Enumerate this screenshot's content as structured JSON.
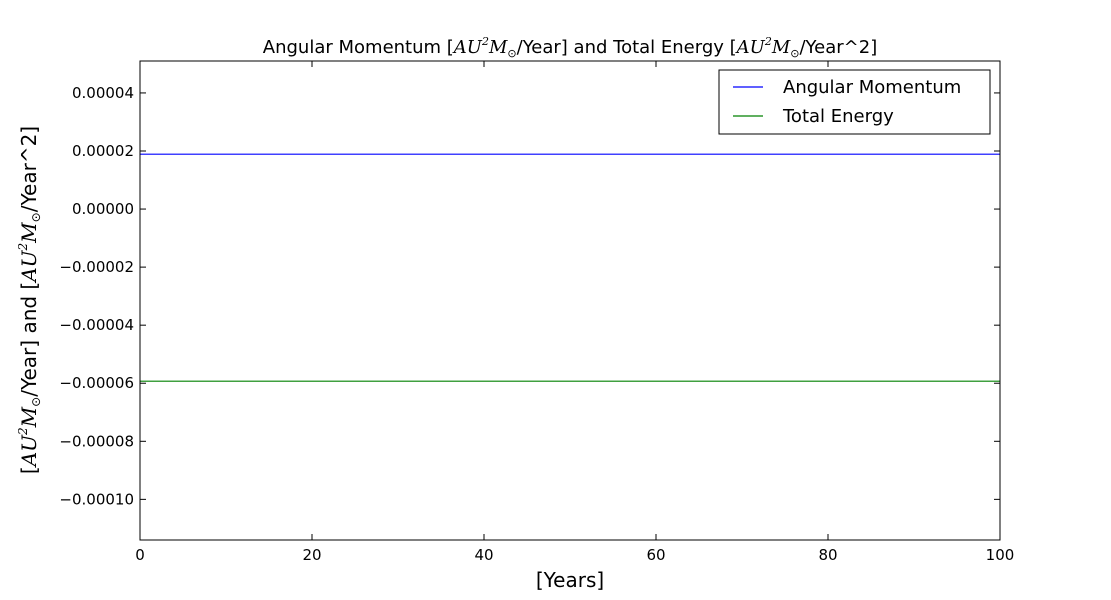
{
  "chart_data": {
    "type": "line",
    "title": {
      "part1": "Angular Momentum [",
      "unit1_a": "AU",
      "unit1_sup": "2",
      "unit1_b": "M",
      "unit1_sub": "⊙",
      "part2": "/Year] and Total Energy [",
      "unit2_a": "AU",
      "unit2_sup": "2",
      "unit2_b": "M",
      "unit2_sub": "⊙",
      "part3": "/Year^2]"
    },
    "xlabel": "[Years]",
    "ylabel": {
      "part1": "[",
      "unit1_a": "AU",
      "unit1_sup": "2",
      "unit1_b": "M",
      "unit1_sub": "⊙",
      "part2": "/Year] and [",
      "unit2_a": "AU",
      "unit2_sup": "2",
      "unit2_b": "M",
      "unit2_sub": "⊙",
      "part3": "/Year^2]"
    },
    "xlim": [
      0,
      100
    ],
    "ylim": [
      -0.000114,
      5.1e-05
    ],
    "xticks": [
      0,
      20,
      40,
      60,
      80,
      100
    ],
    "xtick_labels": [
      "0",
      "20",
      "40",
      "60",
      "80",
      "100"
    ],
    "yticks": [
      4e-05,
      2e-05,
      0.0,
      -2e-05,
      -4e-05,
      -6e-05,
      -8e-05,
      -0.0001
    ],
    "ytick_labels": [
      "0.00004",
      "0.00002",
      "0.00000",
      "−0.00002",
      "−0.00004",
      "−0.00006",
      "−0.00008",
      "−0.00010"
    ],
    "grid": false,
    "legend_position": "top-right",
    "series": [
      {
        "name": "Angular Momentum",
        "color": "#0000ff",
        "x": [
          0,
          100
        ],
        "y": [
          1.89e-05,
          1.89e-05
        ]
      },
      {
        "name": "Total Energy",
        "color": "#008000",
        "x": [
          0,
          100
        ],
        "y": [
          -5.93e-05,
          -5.93e-05
        ]
      }
    ]
  }
}
